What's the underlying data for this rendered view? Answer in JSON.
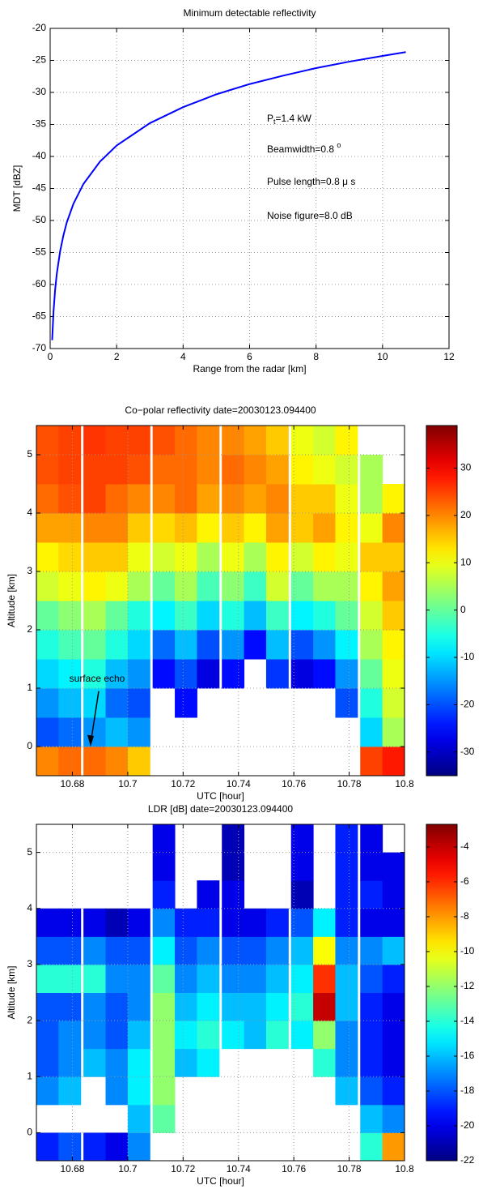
{
  "chart_data": [
    {
      "type": "line",
      "title": "Minimum detectable reflectivity",
      "xlabel": "Range from the radar [km]",
      "ylabel": "MDT [dBZ]",
      "x": [
        0.06,
        0.1,
        0.15,
        0.2,
        0.3,
        0.4,
        0.5,
        0.7,
        1,
        1.5,
        2,
        3,
        4,
        5,
        6,
        7,
        8,
        9,
        10,
        10.7
      ],
      "series": [
        {
          "color": "#0000ff",
          "values": [
            -68.7,
            -64.3,
            -60.8,
            -58.3,
            -54.8,
            -52.3,
            -50.3,
            -47.4,
            -44.3,
            -40.8,
            -38.3,
            -34.8,
            -32.3,
            -30.3,
            -28.7,
            -27.4,
            -26.2,
            -25.2,
            -24.3,
            -23.7
          ]
        }
      ],
      "xlim": [
        0,
        12
      ],
      "xticks": [
        0,
        2,
        4,
        6,
        8,
        10,
        12
      ],
      "ylim": [
        -70,
        -20
      ],
      "yticks": [
        -70,
        -65,
        -60,
        -55,
        -50,
        -45,
        -40,
        -35,
        -30,
        -25,
        -20
      ],
      "grid": true,
      "annotations": [
        {
          "parts": [
            "P",
            "t",
            "=1.4 kW"
          ],
          "styles": [
            "normal",
            "sub",
            "normal"
          ]
        },
        {
          "parts": [
            "Beamwidth=0.8 ",
            "o"
          ],
          "styles": [
            "normal",
            "sup"
          ]
        },
        {
          "parts": [
            "Pulse length=0.8 μ s"
          ],
          "styles": [
            "normal"
          ]
        },
        {
          "parts": [
            "Noise figure=8.0 dB"
          ],
          "styles": [
            "normal"
          ]
        }
      ]
    },
    {
      "type": "heatmap",
      "title": "Co−polar reflectivity date=20030123.094400",
      "xlabel": "UTC [hour]",
      "ylabel": "Altitude [km]",
      "x": [
        10.671,
        10.679,
        10.688,
        10.696,
        10.704,
        10.713,
        10.721,
        10.729,
        10.738,
        10.746,
        10.754,
        10.763,
        10.771,
        10.779,
        10.788,
        10.796
      ],
      "y": [
        -0.25,
        0.25,
        0.75,
        1.25,
        1.75,
        2.25,
        2.75,
        3.25,
        3.75,
        4.25,
        4.75,
        5.25
      ],
      "z": [
        [
          20,
          22,
          22,
          20,
          15,
          null,
          null,
          null,
          null,
          null,
          null,
          null,
          null,
          null,
          25,
          28
        ],
        [
          -20,
          -18,
          -15,
          -12,
          -15,
          null,
          null,
          null,
          null,
          null,
          null,
          null,
          null,
          null,
          -10,
          5
        ],
        [
          -15,
          -12,
          -10,
          -18,
          -20,
          null,
          -25,
          null,
          null,
          null,
          null,
          null,
          null,
          -20,
          -5,
          8
        ],
        [
          -10,
          -8,
          -5,
          -12,
          -15,
          -25,
          -20,
          -28,
          -25,
          null,
          -22,
          -28,
          -25,
          -15,
          0,
          10
        ],
        [
          -5,
          -2,
          0,
          -5,
          -10,
          -18,
          -12,
          -20,
          -15,
          -25,
          -12,
          -20,
          -15,
          -8,
          5,
          12
        ],
        [
          0,
          3,
          5,
          0,
          -5,
          -8,
          -3,
          -10,
          -5,
          -12,
          -3,
          -8,
          -5,
          0,
          8,
          15
        ],
        [
          8,
          10,
          12,
          10,
          5,
          0,
          5,
          -2,
          3,
          -3,
          8,
          0,
          5,
          5,
          12,
          18
        ],
        [
          12,
          14,
          15,
          15,
          10,
          8,
          10,
          5,
          10,
          5,
          12,
          8,
          12,
          10,
          15,
          15
        ],
        [
          18,
          18,
          20,
          20,
          15,
          14,
          16,
          12,
          15,
          12,
          18,
          15,
          18,
          12,
          10,
          20
        ],
        [
          22,
          24,
          25,
          22,
          20,
          20,
          22,
          18,
          20,
          18,
          20,
          15,
          15,
          10,
          5,
          12
        ],
        [
          24,
          25,
          25,
          25,
          24,
          22,
          22,
          20,
          22,
          20,
          18,
          12,
          10,
          8,
          5,
          null
        ],
        [
          24,
          25,
          26,
          25,
          25,
          24,
          22,
          20,
          20,
          18,
          15,
          10,
          8,
          12,
          null,
          null
        ]
      ],
      "xlim": [
        10.667,
        10.8
      ],
      "xticks": [
        10.68,
        10.7,
        10.72,
        10.74,
        10.76,
        10.78,
        10.8
      ],
      "ylim": [
        -0.5,
        5.5
      ],
      "yticks": [
        0,
        1,
        2,
        3,
        4,
        5
      ],
      "clim": [
        -35,
        39
      ],
      "cticks": [
        -30,
        -20,
        -10,
        0,
        10,
        20,
        30
      ],
      "colormap": "jet",
      "grid": true,
      "annotations": [
        {
          "parts": [
            "surface echo"
          ],
          "styles": [
            "normal"
          ]
        }
      ]
    },
    {
      "type": "heatmap",
      "title": "LDR [dB] date=20030123.094400",
      "xlabel": "UTC [hour]",
      "ylabel": "Altitude [km]",
      "x": [
        10.671,
        10.679,
        10.688,
        10.696,
        10.704,
        10.713,
        10.721,
        10.729,
        10.738,
        10.746,
        10.754,
        10.763,
        10.771,
        10.779,
        10.788,
        10.796
      ],
      "y": [
        -0.25,
        0.25,
        0.75,
        1.25,
        1.75,
        2.25,
        2.75,
        3.25,
        3.75,
        4.25,
        4.75,
        5.25
      ],
      "z": [
        [
          -19,
          -18,
          -19,
          -20,
          -17,
          null,
          null,
          null,
          null,
          null,
          null,
          null,
          null,
          null,
          -14,
          -8
        ],
        [
          null,
          null,
          null,
          null,
          -16,
          -13,
          null,
          null,
          null,
          null,
          null,
          null,
          null,
          null,
          -16,
          -17
        ],
        [
          -17,
          -16,
          null,
          -17,
          -15,
          -12,
          null,
          null,
          null,
          null,
          null,
          null,
          null,
          -16,
          -18,
          -19
        ],
        [
          -18,
          -17,
          -16,
          -17,
          -15,
          -12,
          -16,
          -15,
          null,
          null,
          null,
          null,
          -14,
          -17,
          -19,
          -20
        ],
        [
          -18,
          -17,
          -17,
          -18,
          -16,
          -12,
          -15,
          -14,
          -15,
          -16,
          -14,
          -15,
          -12,
          -17,
          -19,
          -20
        ],
        [
          -18,
          -18,
          -17,
          -18,
          -17,
          -12,
          -16,
          -15,
          -16,
          -16,
          -15,
          -14,
          -4,
          -16,
          -19,
          -20
        ],
        [
          -14,
          -14,
          -14,
          -17,
          -17,
          -13,
          -17,
          -16,
          -17,
          -17,
          -16,
          -15,
          -6,
          -16,
          -18,
          -19
        ],
        [
          -18,
          -18,
          -17,
          -18,
          -18,
          -15,
          -18,
          -17,
          -18,
          -18,
          -17,
          -16,
          -10,
          -17,
          -17,
          -16
        ],
        [
          -20,
          -20,
          -20,
          -21,
          -20,
          -17,
          -19,
          -19,
          -20,
          -20,
          -19,
          -18,
          -15,
          -19,
          -20,
          -20
        ],
        [
          null,
          null,
          null,
          null,
          null,
          -19,
          null,
          -20,
          -20,
          null,
          null,
          -21,
          null,
          -19,
          -19,
          -20
        ],
        [
          null,
          null,
          null,
          null,
          null,
          -20,
          null,
          null,
          -21,
          null,
          null,
          -20,
          null,
          -19,
          -20,
          -20
        ],
        [
          null,
          null,
          null,
          null,
          null,
          -20,
          null,
          null,
          -21,
          null,
          null,
          -20,
          null,
          -19,
          -20,
          null
        ]
      ],
      "xlim": [
        10.667,
        10.8
      ],
      "xticks": [
        10.68,
        10.7,
        10.72,
        10.74,
        10.76,
        10.78,
        10.8
      ],
      "ylim": [
        -0.5,
        5.5
      ],
      "yticks": [
        0,
        1,
        2,
        3,
        4,
        5
      ],
      "clim": [
        -22,
        -2.7
      ],
      "cticks": [
        -22,
        -20,
        -18,
        -16,
        -14,
        -12,
        -10,
        -8,
        -6,
        -4
      ],
      "colormap": "jet",
      "grid": true
    }
  ]
}
